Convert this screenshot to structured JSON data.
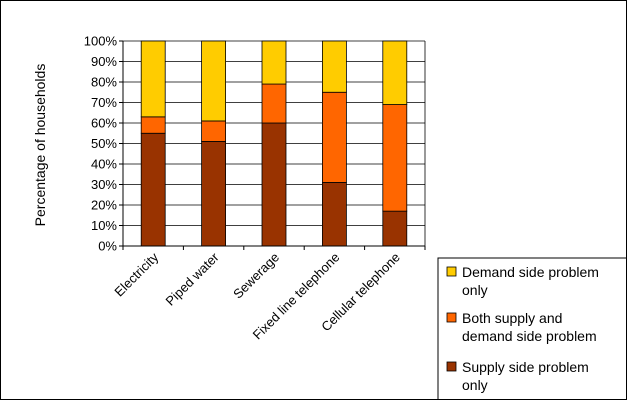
{
  "chart_data": {
    "type": "bar",
    "stacked": true,
    "percent_stacked": true,
    "categories": [
      "Electricity",
      "Piped water",
      "Sewerage",
      "Fixed line telephone",
      "Cellular telephone"
    ],
    "series": [
      {
        "name": "Supply side problem only",
        "values": [
          55,
          51,
          60,
          31,
          17
        ],
        "color": "#993300"
      },
      {
        "name": "Both supply and demand side problem",
        "values": [
          8,
          10,
          19,
          44,
          52
        ],
        "color": "#FF6600"
      },
      {
        "name": "Demand side problem only",
        "values": [
          37,
          39,
          21,
          25,
          31
        ],
        "color": "#FFCC00"
      }
    ],
    "title": "",
    "xlabel": "",
    "ylabel": "Percentage of households",
    "ylim": [
      0,
      100
    ],
    "y_ticks": [
      "0%",
      "10%",
      "20%",
      "30%",
      "40%",
      "50%",
      "60%",
      "70%",
      "80%",
      "90%",
      "100%"
    ],
    "grid": true,
    "legend_position": "bottom-right",
    "legend": [
      {
        "lines": [
          "Demand side problem",
          "only"
        ],
        "series": 2
      },
      {
        "lines": [
          "Both supply and",
          "demand side problem"
        ],
        "series": 1
      },
      {
        "lines": [
          "Supply side problem",
          "only"
        ],
        "series": 0
      }
    ]
  }
}
